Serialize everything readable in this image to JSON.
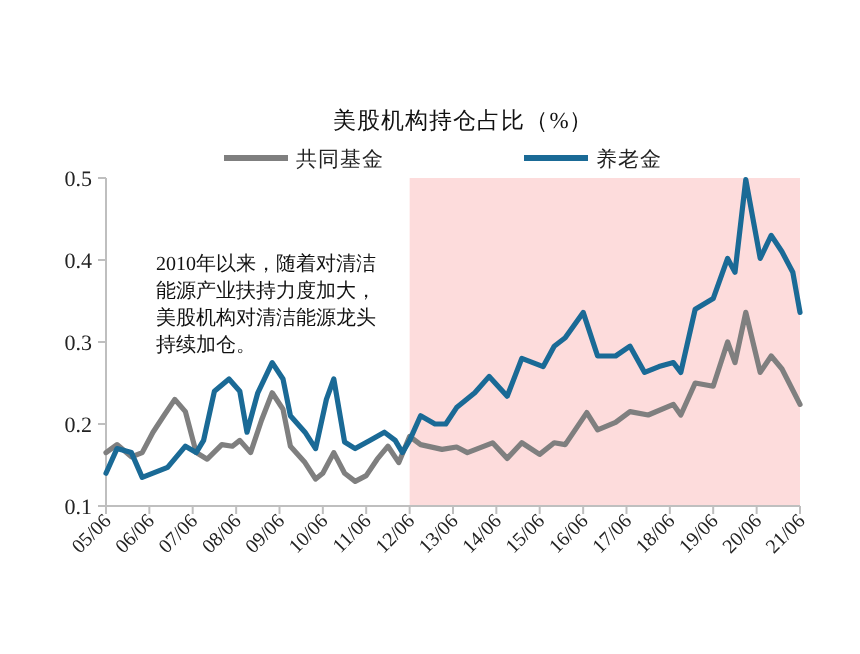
{
  "chart_data": {
    "type": "line",
    "title": "美股机构持仓占比（%）",
    "annotations": [
      "2010年以来，随着对清洁",
      "能源产业扶持力度加大，",
      "美股机构对清洁能源龙头",
      "持续加仓。"
    ],
    "series": [
      {
        "name": "共同基金",
        "color": "#7f7f7f",
        "x": [
          "2005-06",
          "2005-09",
          "2006-01",
          "2006-04",
          "2006-07",
          "2006-10",
          "2007-01",
          "2007-04",
          "2007-07",
          "2007-10",
          "2008-02",
          "2008-05",
          "2008-07",
          "2008-10",
          "2009-01",
          "2009-04",
          "2009-07",
          "2009-09",
          "2010-01",
          "2010-04",
          "2010-06",
          "2010-09",
          "2010-12",
          "2011-03",
          "2011-06",
          "2011-09",
          "2011-12",
          "2012-03",
          "2012-06",
          "2012-09",
          "2013-03",
          "2013-07",
          "2013-10",
          "2014-05",
          "2014-09",
          "2015-01",
          "2015-06",
          "2015-10",
          "2016-01",
          "2016-07",
          "2016-10",
          "2017-03",
          "2017-07",
          "2017-12",
          "2018-07",
          "2018-09",
          "2019-01",
          "2019-06",
          "2019-10",
          "2019-12",
          "2020-03",
          "2020-07",
          "2020-10",
          "2021-01",
          "2021-06"
        ],
        "values": [
          0.165,
          0.175,
          0.16,
          0.165,
          0.19,
          0.21,
          0.23,
          0.215,
          0.165,
          0.157,
          0.175,
          0.173,
          0.18,
          0.165,
          0.205,
          0.238,
          0.218,
          0.173,
          0.153,
          0.133,
          0.14,
          0.165,
          0.14,
          0.13,
          0.137,
          0.157,
          0.173,
          0.153,
          0.185,
          0.175,
          0.169,
          0.172,
          0.165,
          0.177,
          0.158,
          0.177,
          0.163,
          0.177,
          0.175,
          0.214,
          0.193,
          0.202,
          0.215,
          0.211,
          0.224,
          0.211,
          0.25,
          0.246,
          0.3,
          0.275,
          0.336,
          0.263,
          0.283,
          0.267,
          0.224
        ]
      },
      {
        "name": "养老金",
        "color": "#1a6a96",
        "x": [
          "2005-06",
          "2005-09",
          "2006-01",
          "2006-04",
          "2006-07",
          "2006-11",
          "2007-04",
          "2007-07",
          "2007-09",
          "2007-12",
          "2008-04",
          "2008-07",
          "2008-09",
          "2008-12",
          "2009-04",
          "2009-07",
          "2009-09",
          "2010-01",
          "2010-04",
          "2010-07",
          "2010-09",
          "2010-12",
          "2011-03",
          "2011-07",
          "2011-11",
          "2012-02",
          "2012-04",
          "2012-06",
          "2012-09",
          "2013-01",
          "2013-04",
          "2013-07",
          "2013-12",
          "2014-04",
          "2014-09",
          "2015-01",
          "2015-07",
          "2015-10",
          "2016-01",
          "2016-06",
          "2016-10",
          "2017-03",
          "2017-07",
          "2017-11",
          "2018-03",
          "2018-07",
          "2018-09",
          "2019-01",
          "2019-06",
          "2019-10",
          "2019-12",
          "2020-03",
          "2020-07",
          "2020-10",
          "2021-01",
          "2021-04",
          "2021-06"
        ],
        "values": [
          0.14,
          0.17,
          0.165,
          0.135,
          0.14,
          0.147,
          0.173,
          0.165,
          0.18,
          0.24,
          0.255,
          0.24,
          0.19,
          0.238,
          0.275,
          0.255,
          0.21,
          0.19,
          0.17,
          0.23,
          0.255,
          0.178,
          0.17,
          0.18,
          0.19,
          0.18,
          0.165,
          0.18,
          0.21,
          0.2,
          0.2,
          0.22,
          0.238,
          0.258,
          0.234,
          0.28,
          0.27,
          0.295,
          0.305,
          0.336,
          0.283,
          0.283,
          0.295,
          0.263,
          0.27,
          0.275,
          0.263,
          0.34,
          0.353,
          0.402,
          0.385,
          0.498,
          0.402,
          0.43,
          0.41,
          0.385,
          0.336
        ]
      }
    ],
    "xlim": [
      "2005-06",
      "2021-06"
    ],
    "xticks": [
      {
        "value": "2005-06",
        "label": "05/06"
      },
      {
        "value": "2006-06",
        "label": "06/06"
      },
      {
        "value": "2007-06",
        "label": "07/06"
      },
      {
        "value": "2008-06",
        "label": "08/06"
      },
      {
        "value": "2009-06",
        "label": "09/06"
      },
      {
        "value": "2010-06",
        "label": "10/06"
      },
      {
        "value": "2011-06",
        "label": "11/06"
      },
      {
        "value": "2012-06",
        "label": "12/06"
      },
      {
        "value": "2013-06",
        "label": "13/06"
      },
      {
        "value": "2014-06",
        "label": "14/06"
      },
      {
        "value": "2015-06",
        "label": "15/06"
      },
      {
        "value": "2016-06",
        "label": "16/06"
      },
      {
        "value": "2017-06",
        "label": "17/06"
      },
      {
        "value": "2018-06",
        "label": "18/06"
      },
      {
        "value": "2019-06",
        "label": "19/06"
      },
      {
        "value": "2020-06",
        "label": "20/06"
      },
      {
        "value": "2021-06",
        "label": "21/06"
      }
    ],
    "ylim": [
      0.1,
      0.5
    ],
    "yticks": [
      0.1,
      0.2,
      0.3,
      0.4,
      0.5
    ],
    "bands": [
      {
        "axis": "x",
        "from": "2012-06",
        "to": "2021-06",
        "color": "#fddcdc"
      }
    ],
    "legend": "top",
    "grid": false,
    "marker": "none",
    "line_style": "solid"
  }
}
